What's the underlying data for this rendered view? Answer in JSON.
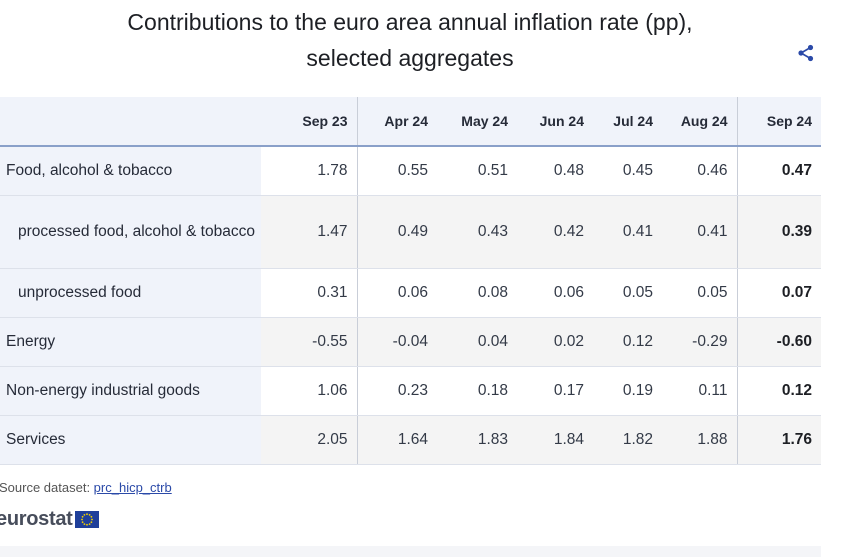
{
  "title_line1": "Contributions to the euro area annual inflation rate (pp),",
  "title_line2": "selected aggregates",
  "chart_data": {
    "type": "table",
    "title": "Contributions to the euro area annual inflation rate (pp), selected aggregates",
    "columns": [
      "Sep 23",
      "Apr 24",
      "May 24",
      "Jun 24",
      "Jul 24",
      "Aug 24",
      "Sep 24"
    ],
    "rows": [
      {
        "label": "Food, alcohol & tobacco",
        "values": [
          "1.78",
          "0.55",
          "0.51",
          "0.48",
          "0.45",
          "0.46",
          "0.47"
        ]
      },
      {
        "label": "processed food, alcohol & tobacco",
        "values": [
          "1.47",
          "0.49",
          "0.43",
          "0.42",
          "0.41",
          "0.41",
          "0.39"
        ]
      },
      {
        "label": "unprocessed food",
        "values": [
          "0.31",
          "0.06",
          "0.08",
          "0.06",
          "0.05",
          "0.05",
          "0.07"
        ]
      },
      {
        "label": "Energy",
        "values": [
          "-0.55",
          "-0.04",
          "0.04",
          "0.02",
          "0.12",
          "-0.29",
          "-0.60"
        ]
      },
      {
        "label": "Non-energy industrial goods",
        "values": [
          "1.06",
          "0.23",
          "0.18",
          "0.17",
          "0.19",
          "0.11",
          "0.12"
        ]
      },
      {
        "label": "Services",
        "values": [
          "2.05",
          "1.64",
          "1.83",
          "1.84",
          "1.82",
          "1.88",
          "1.76"
        ]
      }
    ]
  },
  "source": {
    "label": "Source dataset: ",
    "link": "prc_hicp_ctrb"
  },
  "logo_text": "eurostat",
  "icons": {
    "share": "share-icon",
    "flag": "eu-flag-icon"
  },
  "colors": {
    "accent": "#2b4aa8",
    "header_bg": "#f0f3fa",
    "shaded_row": "#f4f4f4"
  }
}
